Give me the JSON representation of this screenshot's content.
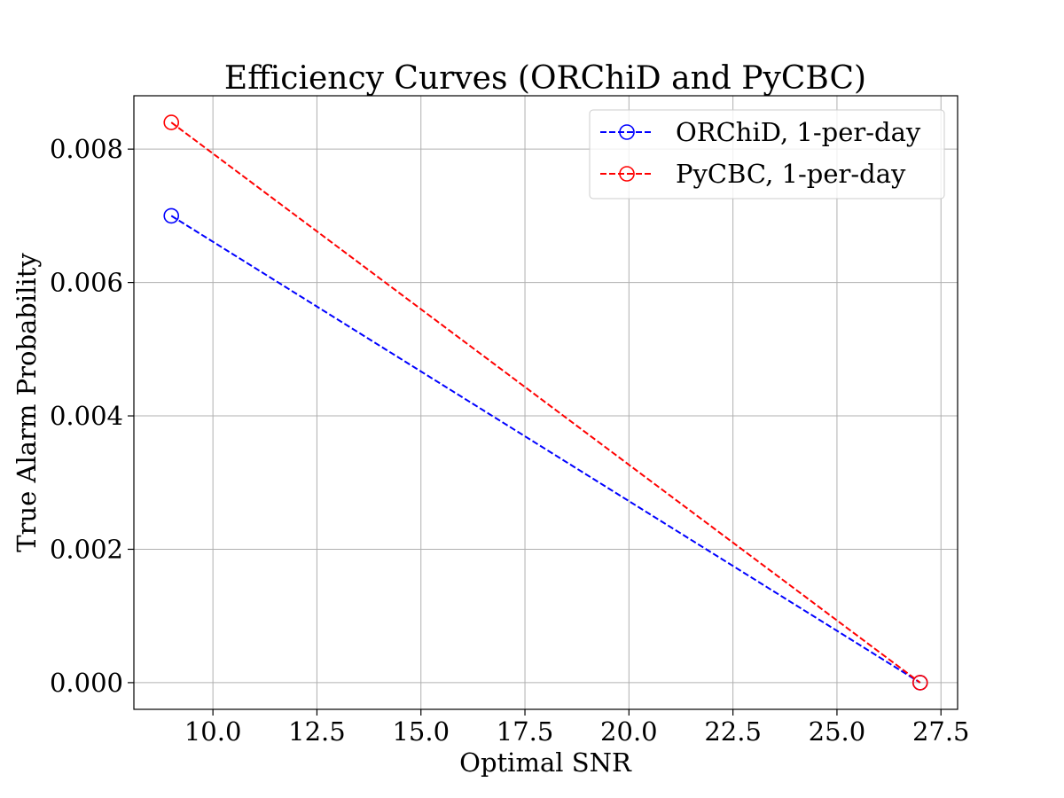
{
  "chart_data": {
    "type": "line",
    "title": "Efficiency Curves (ORChiD and PyCBC)",
    "xlabel": "Optimal SNR",
    "ylabel": "True Alarm Probability",
    "xlim": [
      8.1,
      27.9
    ],
    "ylim": [
      -0.0004,
      0.0088
    ],
    "xticks": [
      10.0,
      12.5,
      15.0,
      17.5,
      20.0,
      22.5,
      25.0,
      27.5
    ],
    "xtick_labels": [
      "10.0",
      "12.5",
      "15.0",
      "17.5",
      "20.0",
      "22.5",
      "25.0",
      "27.5"
    ],
    "yticks": [
      0.0,
      0.002,
      0.004,
      0.006,
      0.008
    ],
    "ytick_labels": [
      "0.000",
      "0.002",
      "0.004",
      "0.006",
      "0.008"
    ],
    "grid": true,
    "legend_position": "top-right",
    "series": [
      {
        "name": "ORChiD, 1-per-day",
        "color": "#0000ff",
        "linestyle": "dashed",
        "marker": "open-circle",
        "x": [
          9.0,
          27.0
        ],
        "y": [
          0.007,
          0.0
        ]
      },
      {
        "name": "PyCBC, 1-per-day",
        "color": "#ff0000",
        "linestyle": "dashed",
        "marker": "open-circle",
        "x": [
          9.0,
          27.0
        ],
        "y": [
          0.0084,
          0.0
        ]
      }
    ]
  }
}
